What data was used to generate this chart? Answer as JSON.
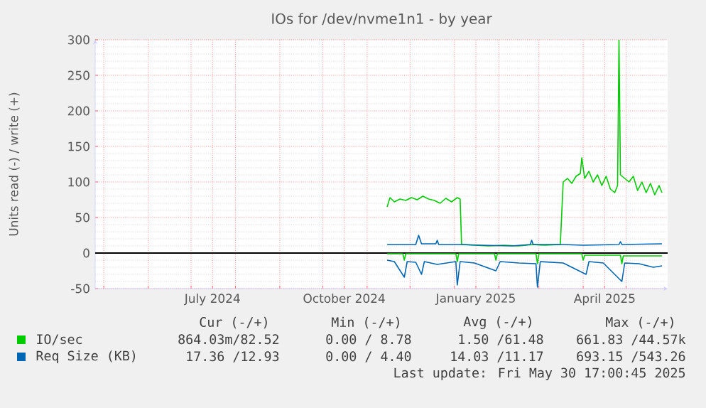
{
  "chart_data": {
    "type": "line",
    "title": "IOs for /dev/nvme1n1 - by year",
    "ylabel": "Units read (-) / write (+)",
    "xlim": [
      "2024-04-25",
      "2025-05-30"
    ],
    "xticks": [
      {
        "value": "2024-05-01",
        "label": null
      },
      {
        "value": "2024-06-01",
        "label": null
      },
      {
        "value": "2024-07-01",
        "label": null
      },
      {
        "value": "2024-07-16",
        "label": "July 2024"
      },
      {
        "value": "2024-08-01",
        "label": null
      },
      {
        "value": "2024-09-01",
        "label": null
      },
      {
        "value": "2024-10-01",
        "label": null
      },
      {
        "value": "2024-10-16",
        "label": "October 2024"
      },
      {
        "value": "2024-11-01",
        "label": null
      },
      {
        "value": "2024-12-01",
        "label": null
      },
      {
        "value": "2025-01-01",
        "label": null
      },
      {
        "value": "2025-01-16",
        "label": "January 2025"
      },
      {
        "value": "2025-02-01",
        "label": null
      },
      {
        "value": "2025-03-01",
        "label": null
      },
      {
        "value": "2025-04-01",
        "label": null
      },
      {
        "value": "2025-04-16",
        "label": "April 2025"
      },
      {
        "value": "2025-05-01",
        "label": null
      }
    ],
    "ylim": [
      -50,
      300
    ],
    "yticks": [
      -50,
      0,
      50,
      100,
      150,
      200,
      250,
      300
    ],
    "grid": true,
    "legend": "bottom",
    "ref_lines": [
      {
        "axis": "y",
        "value": 0,
        "color": "#000000"
      }
    ],
    "series": [
      {
        "name": "IO/sec",
        "color": "#00cc00",
        "x": [
          "2024-11-15",
          "2024-11-17",
          "2024-11-20",
          "2024-11-24",
          "2024-11-28",
          "2024-12-02",
          "2024-12-06",
          "2024-12-10",
          "2024-12-14",
          "2024-12-18",
          "2024-12-22",
          "2024-12-26",
          "2024-12-30",
          "2025-01-03",
          "2025-01-05",
          "2025-01-06",
          "2025-01-15",
          "2025-01-25",
          "2025-02-05",
          "2025-02-15",
          "2025-02-25",
          "2025-03-05",
          "2025-03-16",
          "2025-03-18",
          "2025-03-21",
          "2025-03-24",
          "2025-03-27",
          "2025-03-30",
          "2025-03-31",
          "2025-04-02",
          "2025-04-05",
          "2025-04-08",
          "2025-04-11",
          "2025-04-14",
          "2025-04-17",
          "2025-04-20",
          "2025-04-23",
          "2025-04-25",
          "2025-04-26",
          "2025-04-27",
          "2025-04-30",
          "2025-05-03",
          "2025-05-06",
          "2025-05-09",
          "2025-05-12",
          "2025-05-15",
          "2025-05-18",
          "2025-05-21",
          "2025-05-24",
          "2025-05-26"
        ],
        "values": [
          65,
          78,
          72,
          76,
          74,
          78,
          75,
          80,
          76,
          74,
          70,
          77,
          72,
          78,
          76,
          12,
          11,
          10,
          11,
          10,
          12,
          11,
          12,
          100,
          105,
          98,
          108,
          112,
          134,
          105,
          115,
          100,
          110,
          95,
          108,
          90,
          85,
          95,
          300,
          110,
          105,
          100,
          108,
          88,
          100,
          85,
          98,
          82,
          95,
          85
        ]
      },
      {
        "color": "#00cc00",
        "x": [
          "2024-11-15",
          "2024-11-26",
          "2024-11-27",
          "2024-11-28",
          "2025-01-02",
          "2025-01-03",
          "2025-01-04",
          "2025-01-29",
          "2025-01-30",
          "2025-01-31",
          "2025-02-27",
          "2025-02-28",
          "2025-03-01",
          "2025-03-31",
          "2025-04-01",
          "2025-04-02",
          "2025-04-27",
          "2025-04-28",
          "2025-04-29",
          "2025-05-26"
        ],
        "values": [
          -1,
          -1,
          -10,
          -1,
          -1,
          -12,
          -1,
          -1,
          -10,
          -1,
          -1,
          -15,
          -1,
          -1,
          -10,
          -3,
          -3,
          -15,
          -4,
          -4
        ]
      },
      {
        "name": "Req Size (KB)",
        "color": "#0066b3",
        "x": [
          "2024-11-15",
          "2024-12-05",
          "2024-12-07",
          "2024-12-09",
          "2024-12-19",
          "2024-12-20",
          "2024-12-21",
          "2025-01-06",
          "2025-01-20",
          "2025-02-10",
          "2025-02-23",
          "2025-02-24",
          "2025-02-25",
          "2025-03-18",
          "2025-04-01",
          "2025-04-26",
          "2025-04-27",
          "2025-04-28",
          "2025-05-26"
        ],
        "values": [
          12,
          12,
          25,
          13,
          13,
          18,
          12,
          12,
          11,
          10,
          12,
          18,
          12,
          12,
          11,
          12,
          16,
          12,
          13
        ]
      },
      {
        "color": "#0066b3",
        "x": [
          "2024-11-15",
          "2024-11-20",
          "2024-11-27",
          "2024-11-29",
          "2024-12-05",
          "2024-12-09",
          "2024-12-11",
          "2024-12-20",
          "2025-01-02",
          "2025-01-03",
          "2025-01-05",
          "2025-01-15",
          "2025-01-30",
          "2025-02-02",
          "2025-02-15",
          "2025-02-27",
          "2025-02-28",
          "2025-03-02",
          "2025-03-18",
          "2025-04-03",
          "2025-04-05",
          "2025-04-15",
          "2025-04-28",
          "2025-04-30",
          "2025-05-10",
          "2025-05-20",
          "2025-05-26"
        ],
        "values": [
          -10,
          -12,
          -34,
          -12,
          -13,
          -30,
          -12,
          -16,
          -12,
          -45,
          -12,
          -14,
          -25,
          -12,
          -14,
          -15,
          -48,
          -12,
          -14,
          -30,
          -12,
          -14,
          -40,
          -14,
          -15,
          -20,
          -18
        ]
      }
    ],
    "annotations": [
      "Cur (-/+)",
      "Min (-/+)",
      "Avg (-/+)",
      "Max (-/+)",
      "864.03m/82.52",
      "0.00 / 8.78",
      "1.50 /61.48",
      "661.83 /44.57k",
      "17.36 /12.93",
      "0.00 / 4.40",
      "14.03 /11.17",
      "693.15 /543.26",
      "Last update: Fri May 30 17:00:45 2025"
    ]
  }
}
